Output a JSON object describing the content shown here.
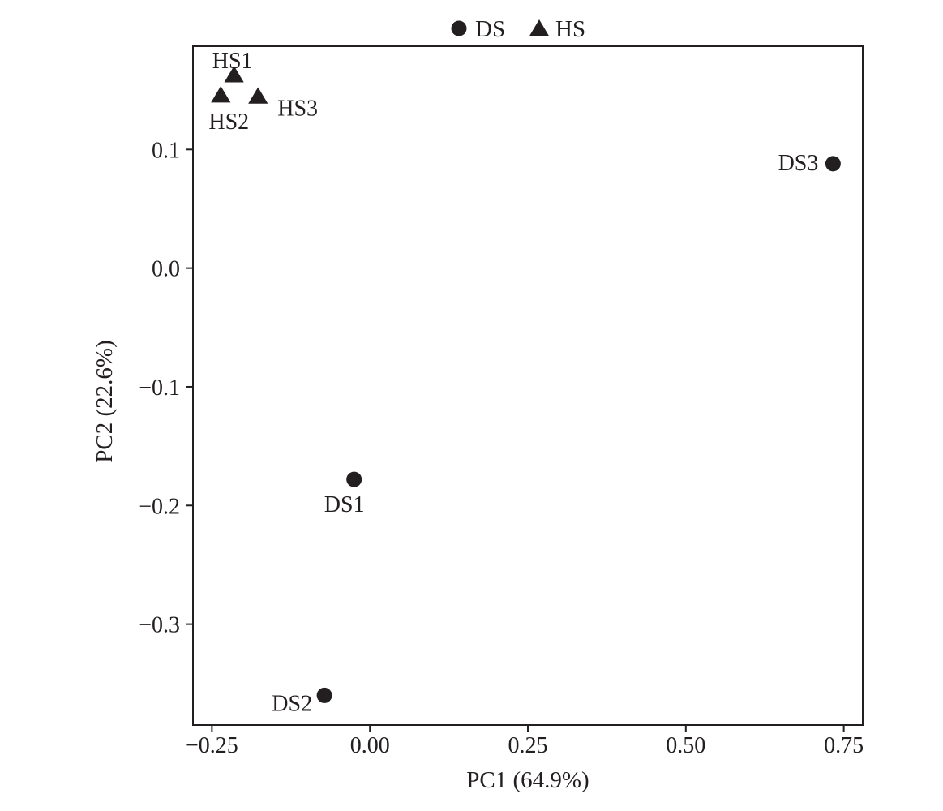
{
  "chart_data": {
    "type": "scatter",
    "title": "",
    "xlabel": "PC1 (64.9%)",
    "ylabel": "PC2 (22.6%)",
    "xlim": [
      -0.28,
      0.78
    ],
    "ylim": [
      -0.385,
      0.187
    ],
    "x_ticks": [
      -0.25,
      0.0,
      0.25,
      0.5,
      0.75
    ],
    "x_tick_labels": [
      "−0.25",
      "0.00",
      "0.25",
      "0.50",
      "0.75"
    ],
    "y_ticks": [
      0.1,
      0.0,
      -0.1,
      -0.2,
      -0.3
    ],
    "y_tick_labels": [
      "0.1",
      "0.0",
      "−0.1",
      "−0.2",
      "−0.3"
    ],
    "grid": false,
    "legend_position": "top-center",
    "colors": {
      "marker": "#231f20",
      "axis": "#231f20"
    },
    "series": [
      {
        "name": "DS",
        "marker": "circle",
        "points": [
          {
            "label": "DS1",
            "x": -0.025,
            "y": -0.178
          },
          {
            "label": "DS2",
            "x": -0.072,
            "y": -0.36
          },
          {
            "label": "DS3",
            "x": 0.733,
            "y": 0.088
          }
        ]
      },
      {
        "name": "HS",
        "marker": "triangle",
        "points": [
          {
            "label": "HS1",
            "x": -0.215,
            "y": 0.163
          },
          {
            "label": "HS2",
            "x": -0.236,
            "y": 0.146
          },
          {
            "label": "HS3",
            "x": -0.177,
            "y": 0.145
          }
        ]
      }
    ]
  }
}
